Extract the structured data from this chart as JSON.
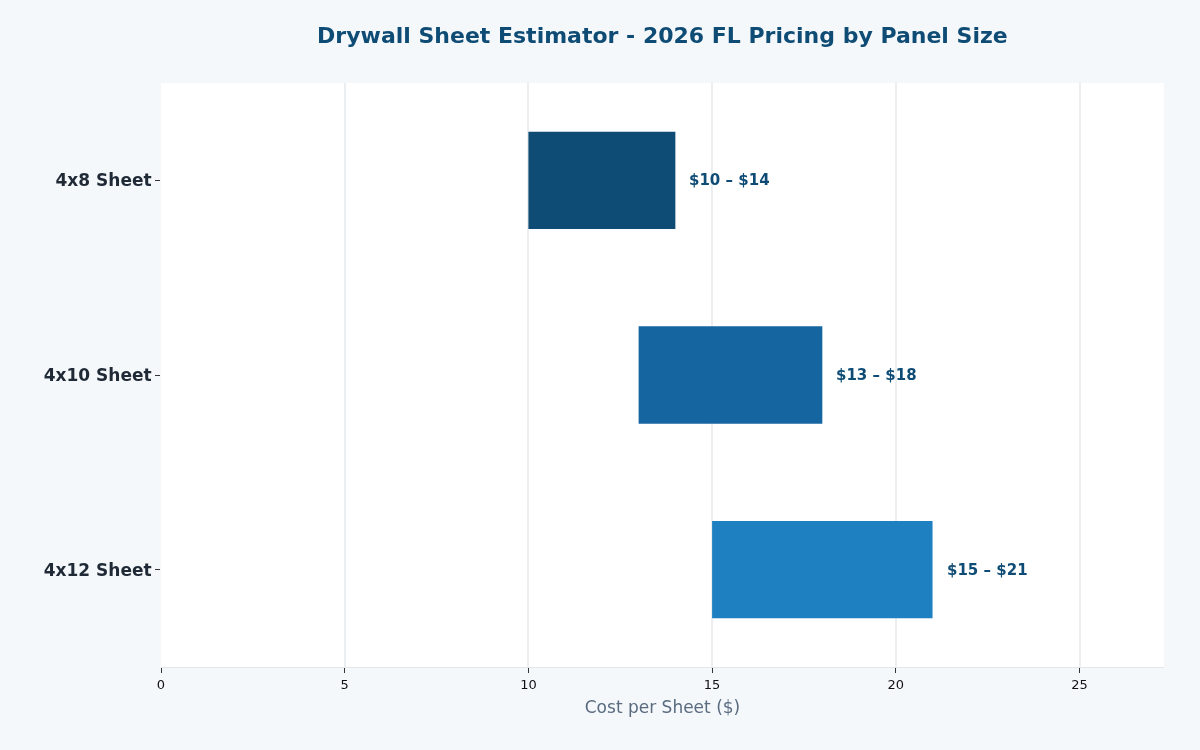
{
  "chart_data": {
    "type": "bar",
    "orientation": "horizontal",
    "title": "Drywall Sheet Estimator - 2026 FL Pricing by Panel Size",
    "xlabel": "Cost per Sheet ($)",
    "categories": [
      "4x8 Sheet",
      "4x10 Sheet",
      "4x12 Sheet"
    ],
    "base": [
      10,
      13,
      15
    ],
    "values": [
      4,
      5,
      6
    ],
    "colors": [
      "#0f4c75",
      "#1565a0",
      "#1e7fc1"
    ],
    "annotations": [
      {
        "text": "$10 – $14",
        "x": 14,
        "y": "4x8 Sheet"
      },
      {
        "text": "$13 – $18",
        "x": 18,
        "y": "4x10 Sheet"
      },
      {
        "text": "$15 – $21",
        "x": 21,
        "y": "4x12 Sheet"
      }
    ],
    "xlim": [
      0,
      27.3
    ],
    "xticks": [
      0,
      5,
      10,
      15,
      20,
      25
    ],
    "grid": "x"
  }
}
